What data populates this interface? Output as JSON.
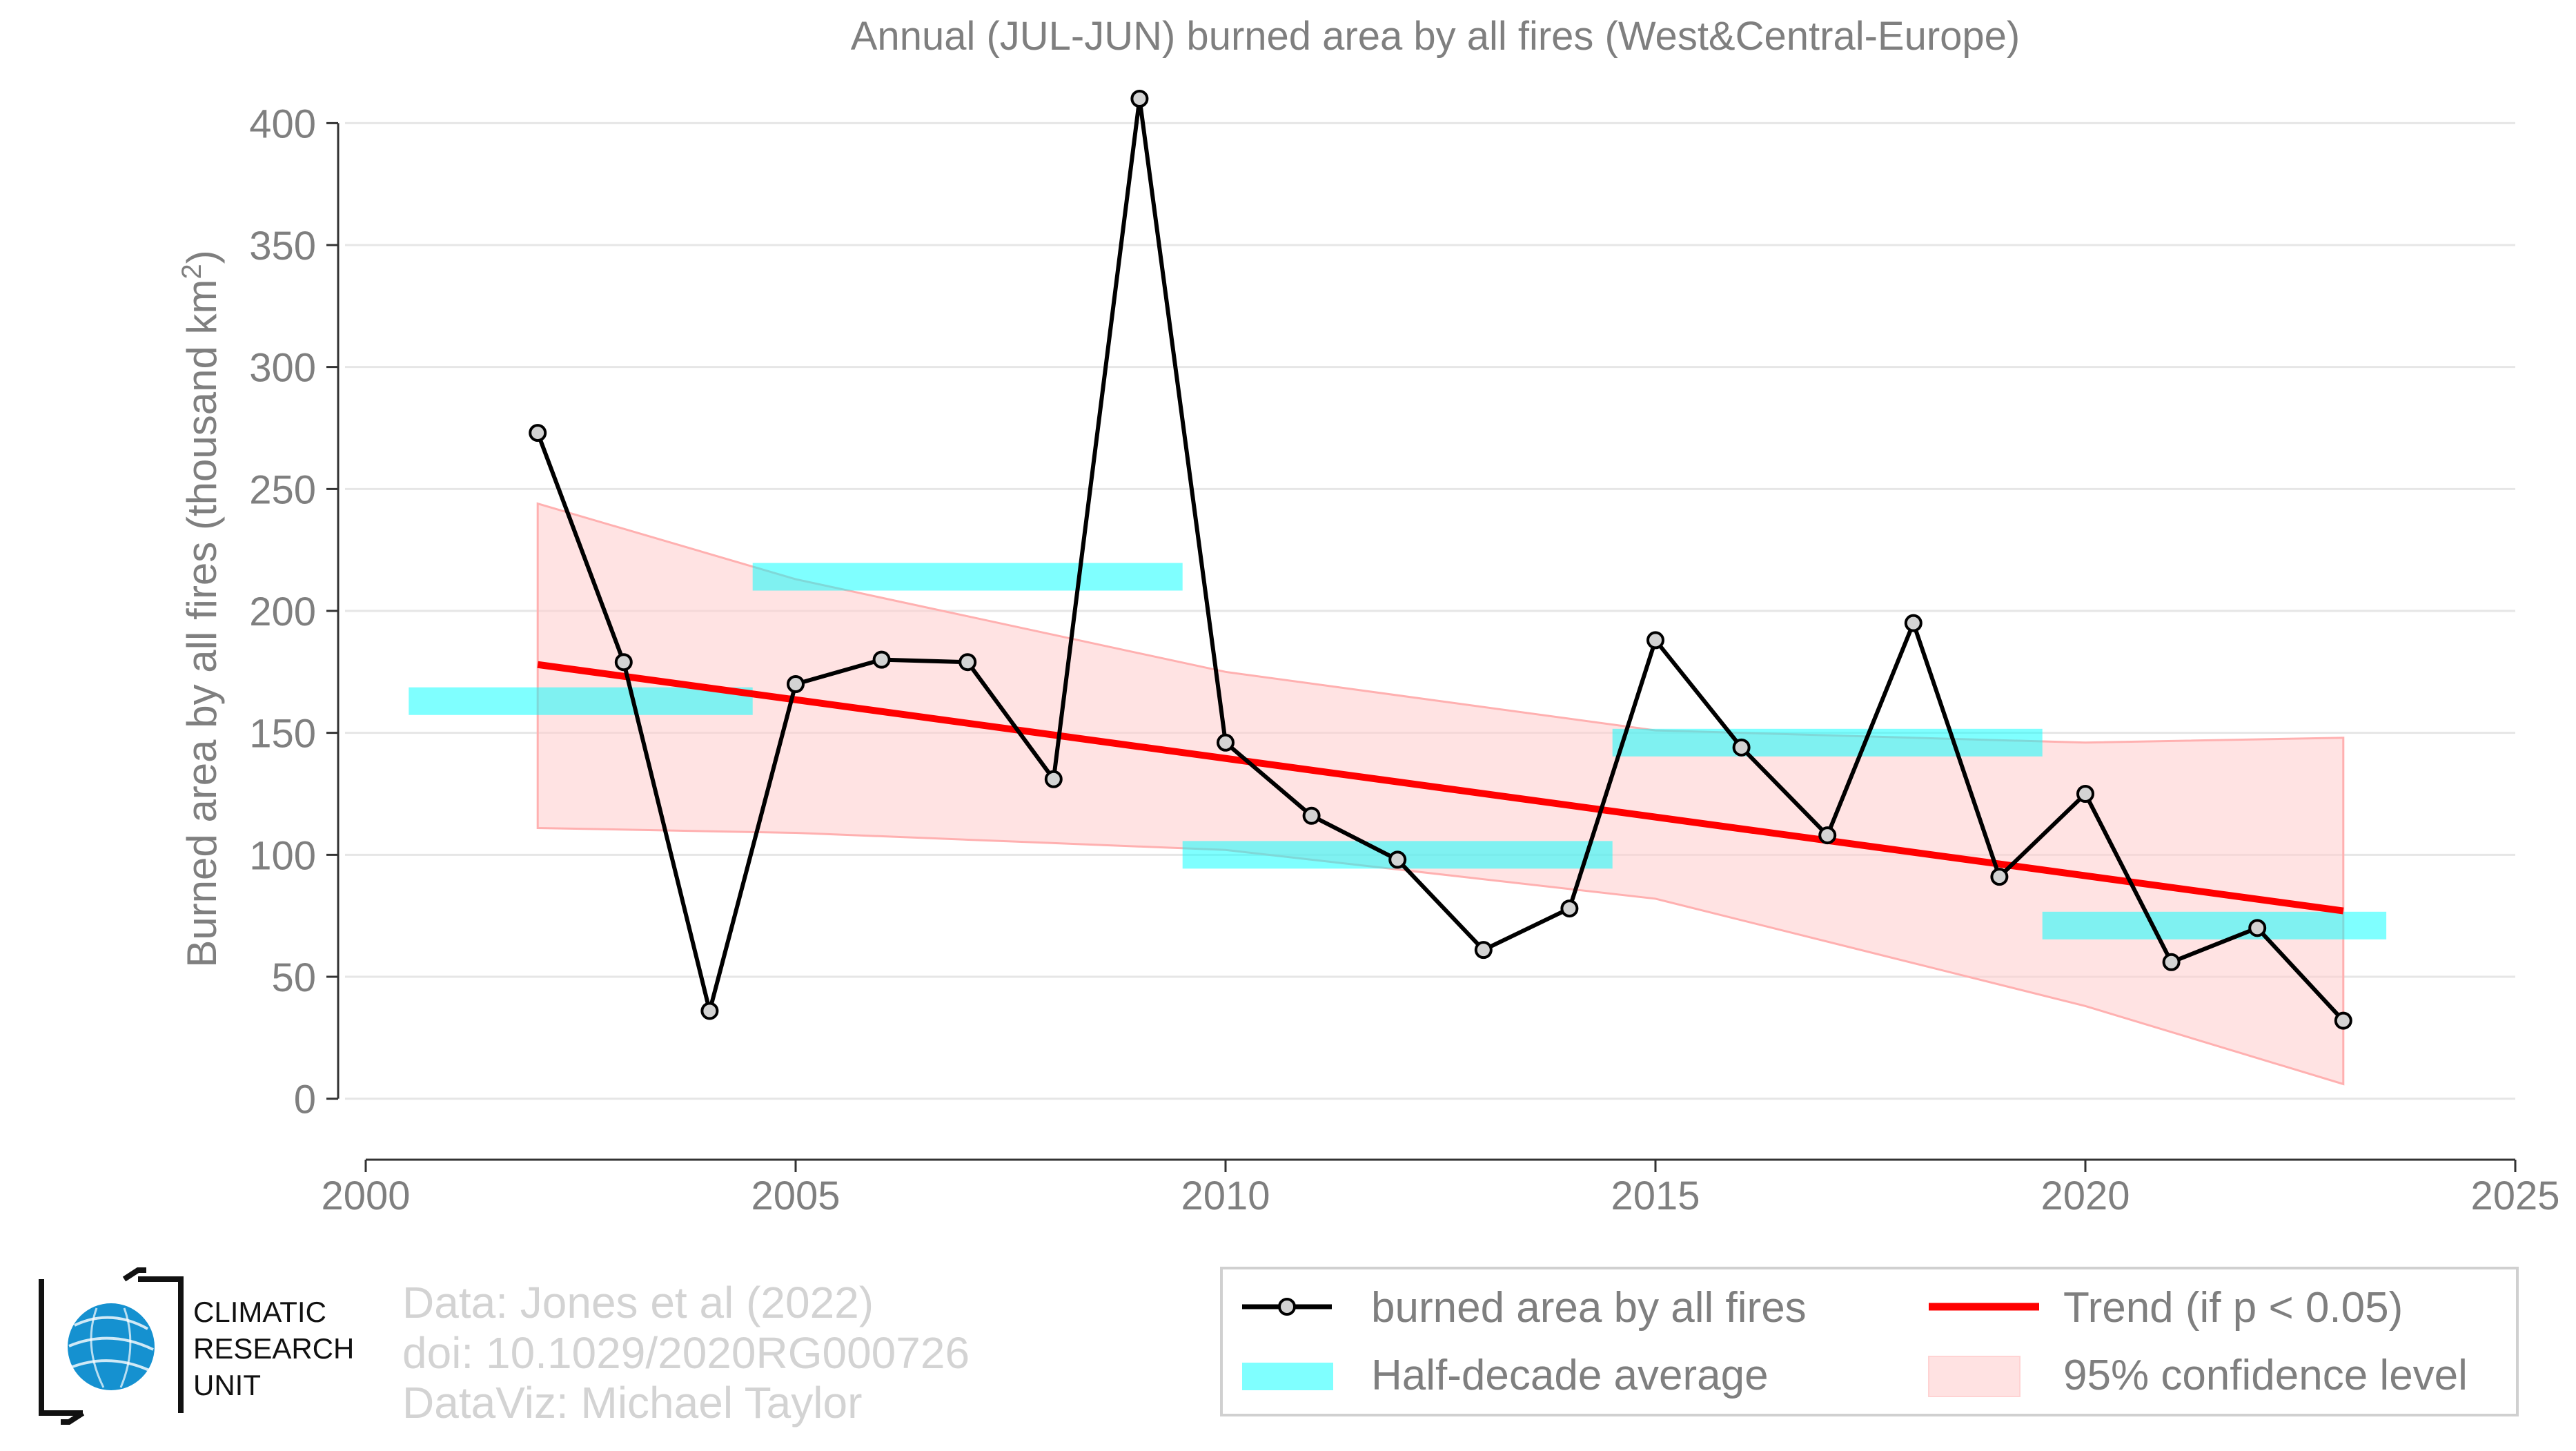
{
  "chart_data": {
    "type": "line",
    "title": "Annual (JUL-JUN) burned area by all fires (West&Central-Europe)",
    "ylabel_main": "Burned area by all fires (thousand km",
    "ylabel_sup": "2",
    "ylabel_end": ")",
    "xlim": [
      2000,
      2025
    ],
    "ylim": [
      -25,
      425
    ],
    "x_ticks": [
      2000,
      2005,
      2010,
      2015,
      2020,
      2025
    ],
    "y_ticks": [
      0,
      50,
      100,
      150,
      200,
      250,
      300,
      350,
      400
    ],
    "grid": "horizontal",
    "series": [
      {
        "name": "burned area by all fires",
        "color": "#000000",
        "x": [
          2002,
          2003,
          2004,
          2005,
          2006,
          2007,
          2008,
          2009,
          2010,
          2011,
          2012,
          2013,
          2014,
          2015,
          2016,
          2017,
          2018,
          2019,
          2020,
          2021,
          2022,
          2023
        ],
        "y": [
          273,
          179,
          36,
          170,
          180,
          179,
          131,
          410,
          146,
          116,
          98,
          61,
          78,
          188,
          144,
          108,
          195,
          91,
          125,
          56,
          70,
          32
        ]
      }
    ],
    "half_decade_average": {
      "name": "Half-decade average",
      "color": "#00ffff",
      "segments": [
        {
          "x": [
            2000.5,
            2004.5
          ],
          "y": 163
        },
        {
          "x": [
            2004.5,
            2009.5
          ],
          "y": 214
        },
        {
          "x": [
            2009.5,
            2014.5
          ],
          "y": 100
        },
        {
          "x": [
            2014.5,
            2019.5
          ],
          "y": 146
        },
        {
          "x": [
            2019.5,
            2023.5
          ],
          "y": 71
        }
      ]
    },
    "trend": {
      "name": "Trend (if p < 0.05)",
      "color": "#ff0000",
      "x": [
        2002,
        2023
      ],
      "y": [
        178,
        77
      ]
    },
    "confidence": {
      "name": "95% confidence level",
      "color": "#ffcccc",
      "x": [
        2002,
        2005,
        2010,
        2015,
        2020,
        2023
      ],
      "upper": [
        244,
        213,
        175,
        151,
        146,
        148
      ],
      "lower": [
        111,
        109,
        102,
        82,
        38,
        6
      ]
    },
    "legend": {
      "placement": "bottom-right",
      "items": [
        "burned area by all fires",
        "Trend (if p < 0.05)",
        "Half-decade average",
        "95% confidence level"
      ]
    }
  },
  "credits": {
    "line1": "Data: Jones et al (2022)",
    "line2": "doi: 10.1029/2020RG000726",
    "line3": "DataViz: Michael Taylor"
  },
  "logo": {
    "icon": "globe-icon",
    "line1": "CLIMATIC",
    "line2": "RESEARCH",
    "line3": "UNIT"
  }
}
